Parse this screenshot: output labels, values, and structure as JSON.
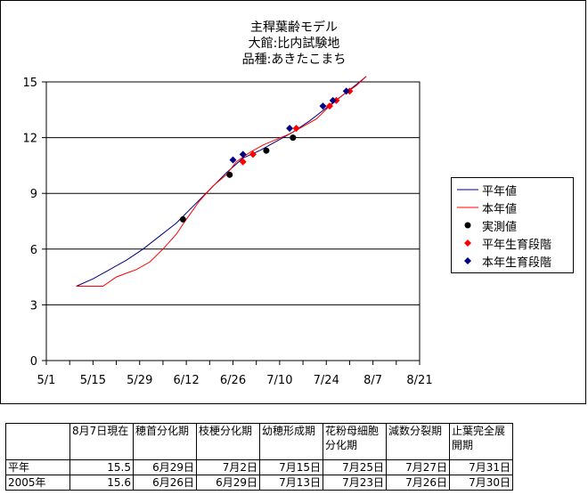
{
  "chart_data": {
    "type": "line",
    "title_lines": [
      "主稈葉齢モデル",
      "大館:比内試験地",
      "品種:あきたこまち"
    ],
    "x_ticks": [
      "5/1",
      "5/15",
      "5/29",
      "6/12",
      "6/26",
      "7/10",
      "7/24",
      "8/7",
      "8/21"
    ],
    "y_ticks": [
      "0",
      "3",
      "6",
      "9",
      "12",
      "15"
    ],
    "xlim": [
      "5/1",
      "8/21"
    ],
    "ylim": [
      0,
      15
    ],
    "grid": "horizontal",
    "legend_position": "right",
    "series": [
      {
        "name": "平年値",
        "kind": "line",
        "color": "#000080",
        "points": [
          [
            "5/10",
            4.0
          ],
          [
            "5/15",
            4.4
          ],
          [
            "5/20",
            4.9
          ],
          [
            "5/25",
            5.4
          ],
          [
            "5/30",
            6.0
          ],
          [
            "6/4",
            6.7
          ],
          [
            "6/9",
            7.4
          ],
          [
            "6/14",
            8.3
          ],
          [
            "6/19",
            9.2
          ],
          [
            "6/24",
            10.1
          ],
          [
            "6/29",
            10.9
          ],
          [
            "7/4",
            11.3
          ],
          [
            "7/9",
            11.8
          ],
          [
            "7/14",
            12.3
          ],
          [
            "7/19",
            12.9
          ],
          [
            "7/24",
            13.6
          ],
          [
            "7/29",
            14.3
          ],
          [
            "8/3",
            15.0
          ],
          [
            "8/5",
            15.3
          ]
        ]
      },
      {
        "name": "本年値",
        "kind": "line",
        "color": "#ff0000",
        "points": [
          [
            "5/10",
            4.0
          ],
          [
            "5/18",
            4.0
          ],
          [
            "5/22",
            4.5
          ],
          [
            "5/25",
            4.7
          ],
          [
            "5/28",
            4.9
          ],
          [
            "6/1",
            5.3
          ],
          [
            "6/5",
            6.0
          ],
          [
            "6/9",
            6.8
          ],
          [
            "6/12",
            7.6
          ],
          [
            "6/16",
            8.6
          ],
          [
            "6/20",
            9.4
          ],
          [
            "6/24",
            10.0
          ],
          [
            "6/27",
            10.7
          ],
          [
            "7/1",
            11.2
          ],
          [
            "7/5",
            11.6
          ],
          [
            "7/9",
            11.9
          ],
          [
            "7/13",
            12.2
          ],
          [
            "7/17",
            12.6
          ],
          [
            "7/21",
            13.0
          ],
          [
            "7/25",
            13.7
          ],
          [
            "7/29",
            14.3
          ],
          [
            "8/2",
            14.8
          ],
          [
            "8/5",
            15.3
          ]
        ]
      },
      {
        "name": "実測値",
        "kind": "points",
        "marker": "circle",
        "color": "#000000",
        "points": [
          [
            "6/11",
            7.6
          ],
          [
            "6/25",
            10.0
          ],
          [
            "7/6",
            11.3
          ],
          [
            "7/14",
            12.0
          ]
        ]
      },
      {
        "name": "平年生育段階",
        "kind": "points",
        "marker": "diamond",
        "color": "#ff0000",
        "points": [
          [
            "6/29",
            10.7
          ],
          [
            "7/2",
            11.1
          ],
          [
            "7/15",
            12.5
          ],
          [
            "7/25",
            13.7
          ],
          [
            "7/27",
            14.0
          ],
          [
            "7/31",
            14.5
          ]
        ]
      },
      {
        "name": "本年生育段階",
        "kind": "points",
        "marker": "diamond",
        "color": "#000080",
        "points": [
          [
            "6/26",
            10.8
          ],
          [
            "6/29",
            11.1
          ],
          [
            "7/13",
            12.5
          ],
          [
            "7/23",
            13.7
          ],
          [
            "7/26",
            14.0
          ],
          [
            "7/30",
            14.5
          ]
        ]
      }
    ]
  },
  "table": {
    "headers": [
      "",
      "8月7日現在",
      "穂首分化期",
      "枝梗分化期",
      "幼穂形成期",
      "花粉母細胞分化期",
      "減数分裂期",
      "止葉完全展開期"
    ],
    "rows": [
      [
        "平年",
        "15.5",
        "6月29日",
        "7月2日",
        "7月15日",
        "7月25日",
        "7月27日",
        "7月31日"
      ],
      [
        "2005年",
        "15.6",
        "6月26日",
        "6月29日",
        "7月13日",
        "7月23日",
        "7月26日",
        "7月30日"
      ]
    ]
  }
}
